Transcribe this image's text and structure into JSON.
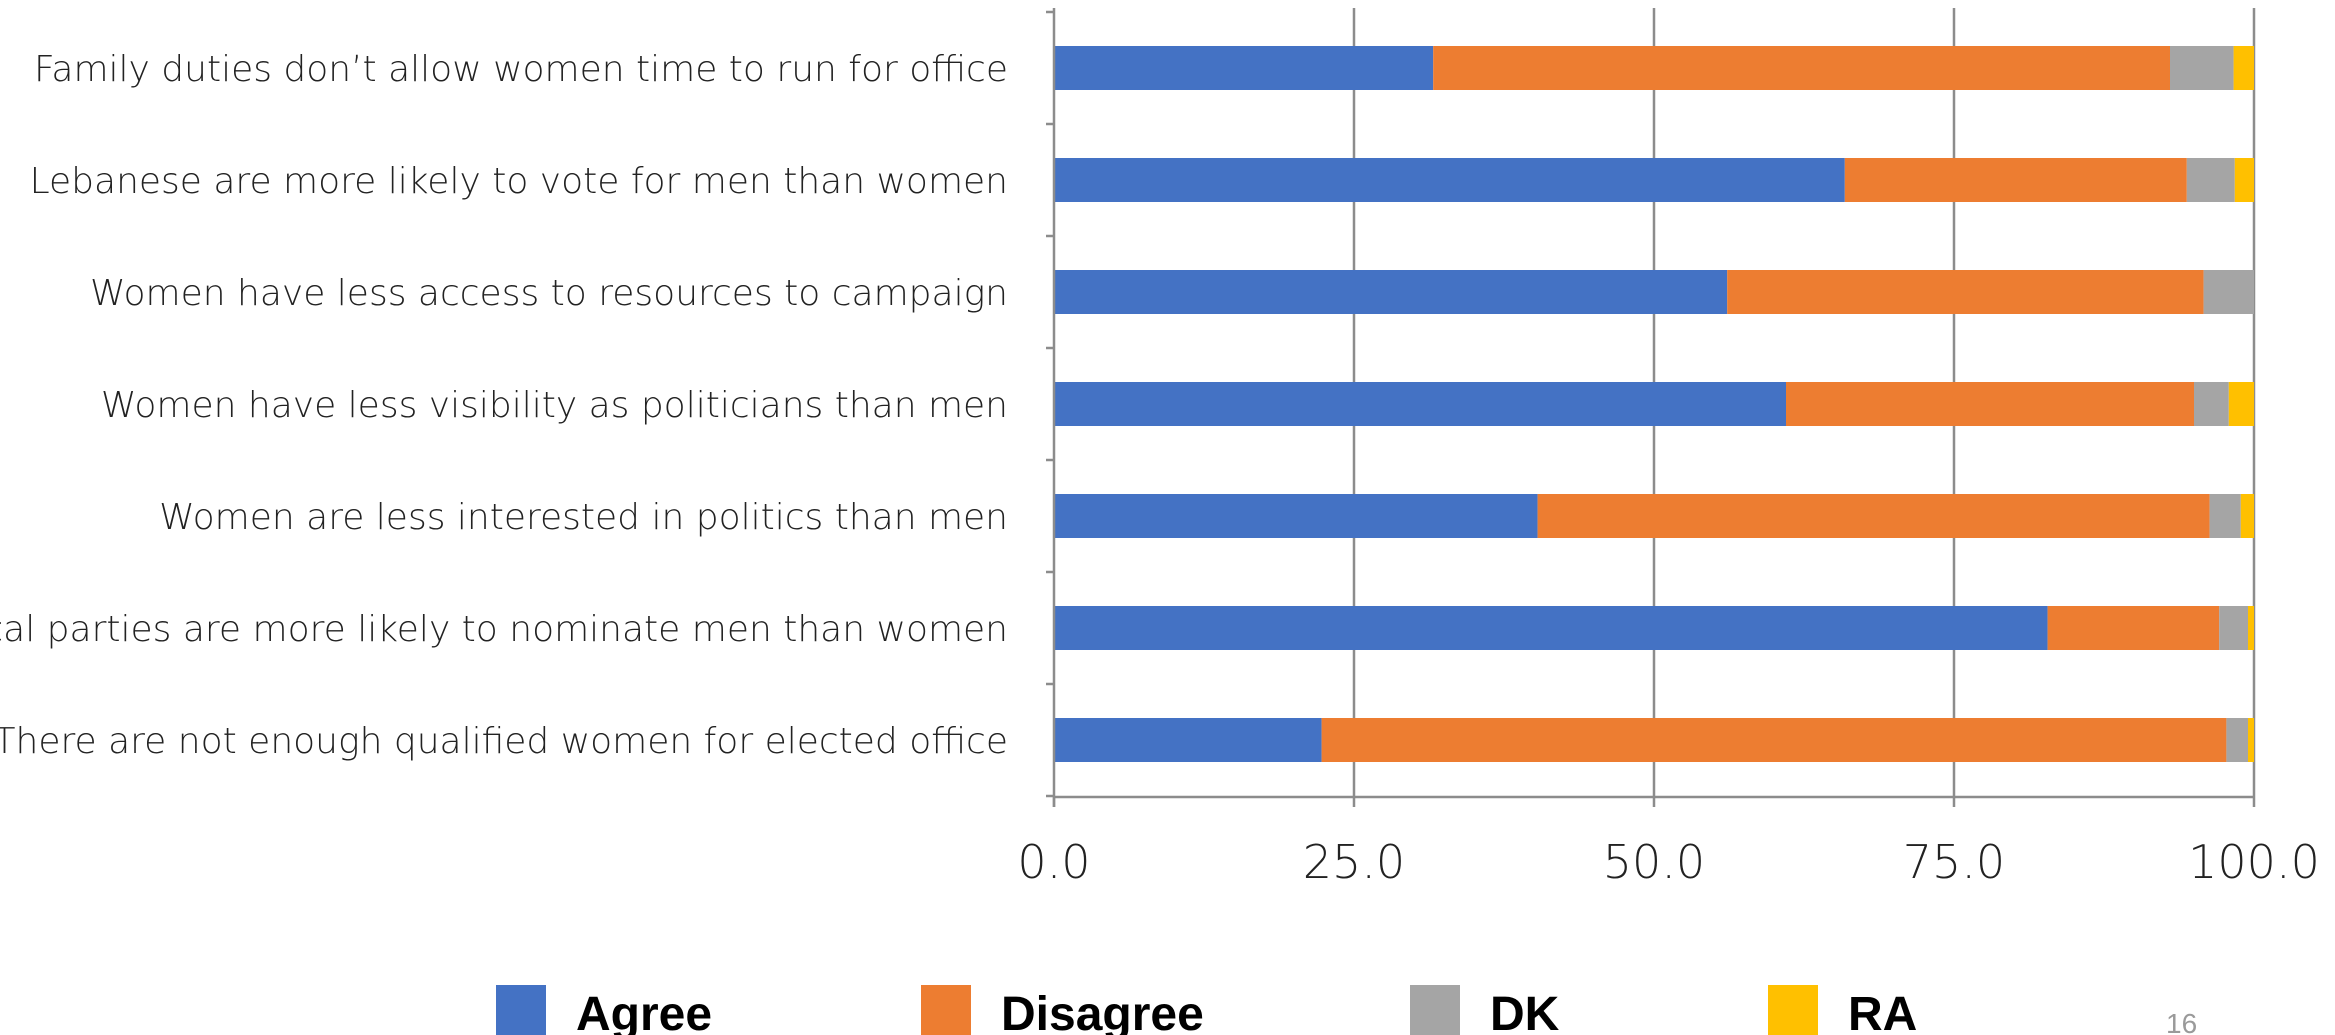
{
  "chart_data": {
    "type": "bar",
    "orientation": "horizontal",
    "stacked": true,
    "categories": [
      "Family duties don’t allow women time to run for office",
      "Lebanese are more likely to vote for men than women",
      "Women have less access to resources to campaign",
      "Women have less visibility as politicians than men",
      "Women are less interested in politics than men",
      "Political parties are more likely to nominate men than women",
      "There are not enough qualified women for elected office"
    ],
    "series": [
      {
        "name": "Agree",
        "color": "#4472C4",
        "values": [
          31.6,
          65.9,
          56.1,
          61.0,
          40.3,
          82.8,
          22.3
        ]
      },
      {
        "name": "Disagree",
        "color": "#ED7D31",
        "values": [
          61.4,
          28.5,
          39.7,
          34.0,
          56.0,
          14.3,
          75.4
        ]
      },
      {
        "name": "DK",
        "color": "#A5A5A5",
        "values": [
          5.3,
          4.0,
          4.2,
          2.9,
          2.6,
          2.4,
          1.8
        ]
      },
      {
        "name": "RA",
        "color": "#FFC000",
        "values": [
          1.7,
          1.6,
          0.0,
          2.1,
          1.1,
          0.5,
          0.5
        ]
      }
    ],
    "xlim": [
      0,
      100
    ],
    "xticks": [
      "0.0",
      "25.0",
      "50.0",
      "75.0",
      "100.0"
    ],
    "xtick_values": [
      0,
      25,
      50,
      75,
      100
    ],
    "grid": true,
    "legend_position": "bottom",
    "xlabel": "",
    "ylabel": "",
    "title": ""
  },
  "page_number": "16"
}
